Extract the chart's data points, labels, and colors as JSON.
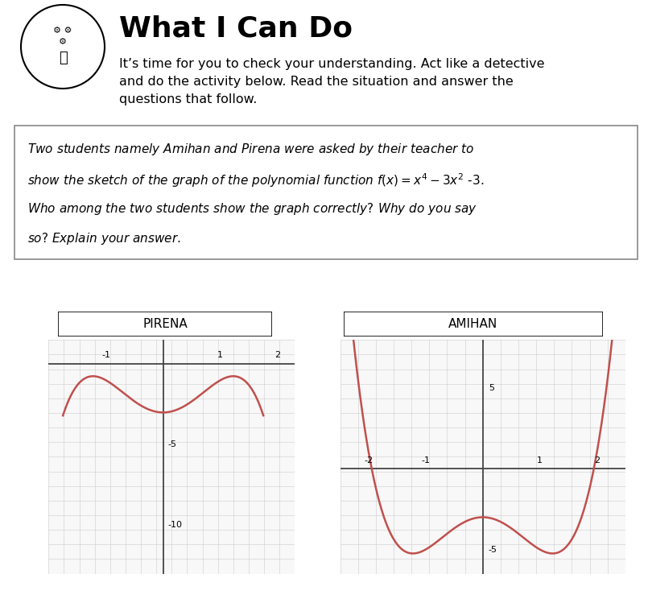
{
  "title": "What I Can Do",
  "intro_text": "It’s time for you to check your understanding. Act like a detective\nand do the activity below. Read the situation and answer the\nquestions that follow.",
  "label_pirena": "PIRENA",
  "label_amihan": "AMIHAN",
  "bg_color": "#ffffff",
  "grid_color": "#cccccc",
  "axis_color": "#444444",
  "curve_color": "#c0504d",
  "pirena_xlim": [
    -2.0,
    2.3
  ],
  "pirena_ylim": [
    -13,
    1.5
  ],
  "pirena_xticks": [
    -1,
    0,
    1,
    2
  ],
  "pirena_yticks": [
    -10,
    -5
  ],
  "amihan_xlim": [
    -2.5,
    2.5
  ],
  "amihan_ylim": [
    -6.5,
    8.0
  ],
  "amihan_xticks": [
    -2,
    -1,
    0,
    1,
    2
  ],
  "amihan_yticks": [
    -5,
    5
  ]
}
